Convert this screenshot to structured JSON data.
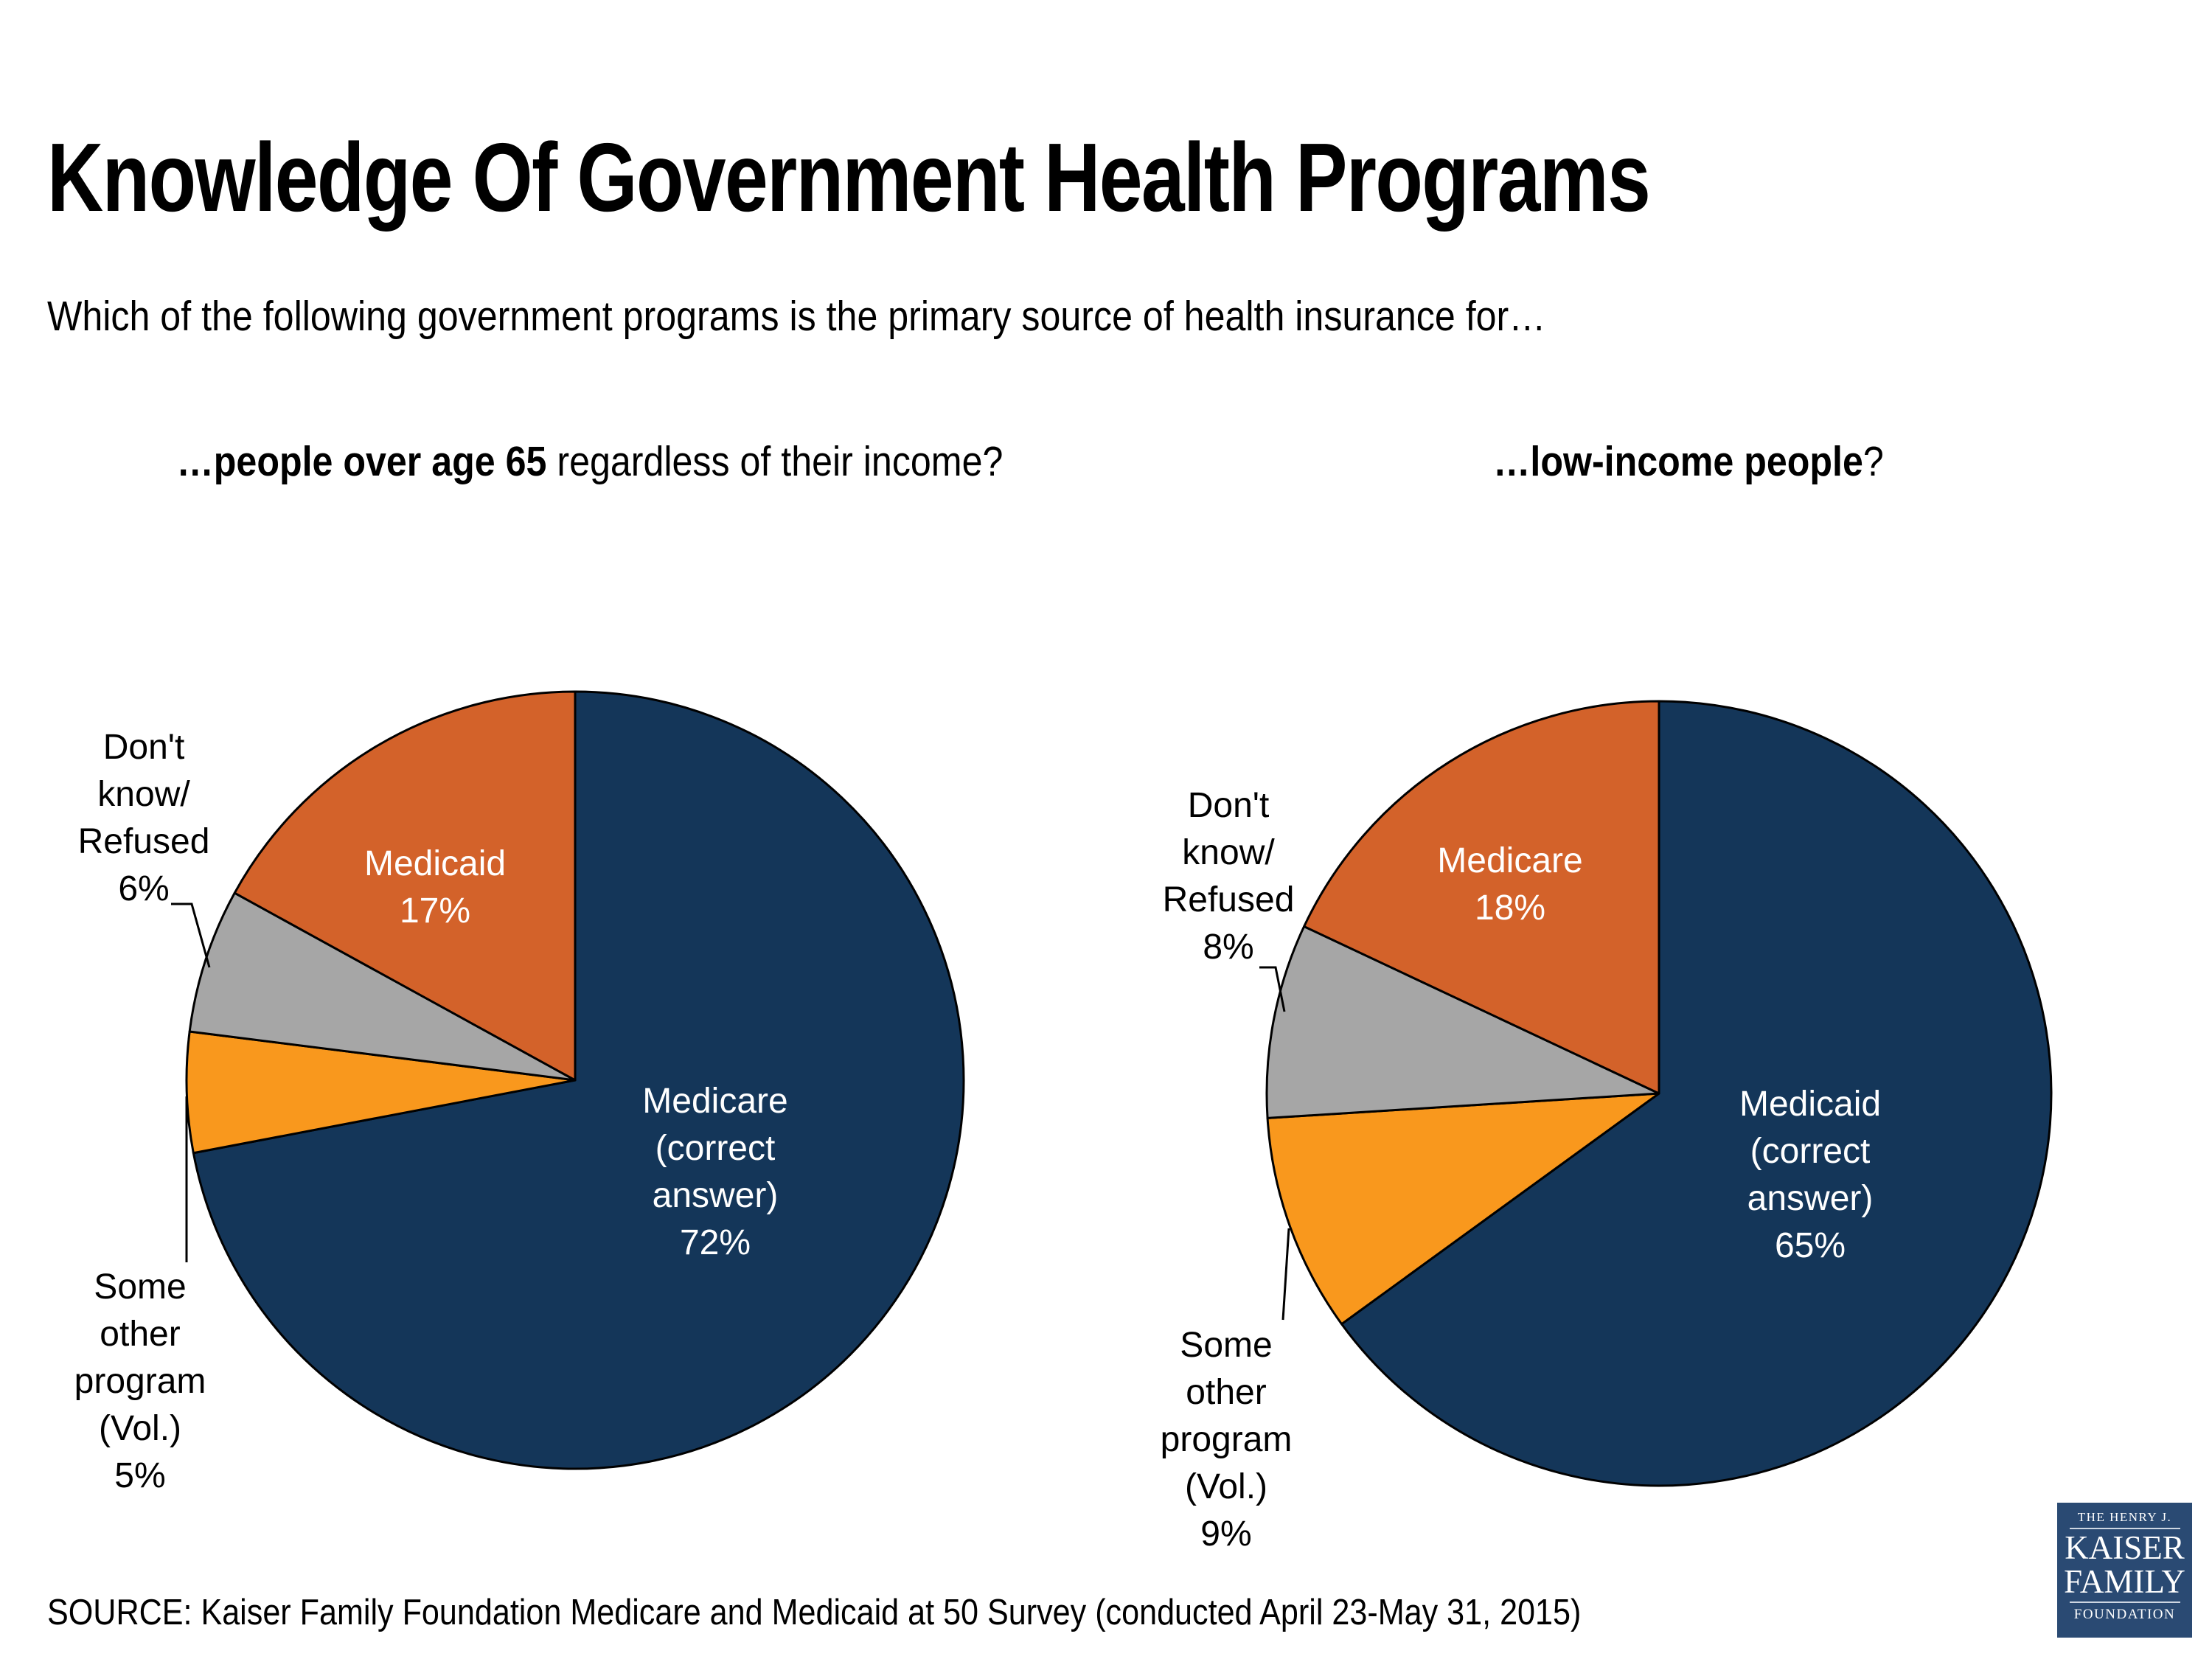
{
  "title": "Knowledge Of Government Health Programs",
  "question": "Which of the following government programs is the primary source of health insurance for…",
  "panels": [
    {
      "header_bold": "…people over age 65",
      "header_rest": " regardless of their income?"
    },
    {
      "header_bold": "…low-income people",
      "header_rest": "?"
    }
  ],
  "chart_data": [
    {
      "type": "pie",
      "title": "…people over age 65 regardless of their income?",
      "start_angle_deg": 0,
      "direction": "clockwise",
      "slices": [
        {
          "label": "Medicare (correct answer)",
          "value": 72,
          "color": "#143659",
          "label_lines": [
            "Medicare",
            "(correct",
            "answer)",
            "72%"
          ],
          "label_color": "#ffffff"
        },
        {
          "label": "Some other program (Vol.)",
          "value": 5,
          "color": "#F9981D",
          "label_lines": [
            "Some",
            "other",
            "program",
            "(Vol.)",
            "5%"
          ],
          "label_color": "#000000"
        },
        {
          "label": "Don't know/Refused",
          "value": 6,
          "color": "#A6A6A6",
          "label_lines": [
            "Don't",
            "know/",
            "Refused",
            "6%"
          ],
          "label_color": "#000000"
        },
        {
          "label": "Medicaid",
          "value": 17,
          "color": "#D3622A",
          "label_lines": [
            "Medicaid",
            "17%"
          ],
          "label_color": "#ffffff"
        }
      ]
    },
    {
      "type": "pie",
      "title": "…low-income people?",
      "start_angle_deg": 0,
      "direction": "clockwise",
      "slices": [
        {
          "label": "Medicaid (correct answer)",
          "value": 65,
          "color": "#143659",
          "label_lines": [
            "Medicaid",
            "(correct",
            "answer)",
            "65%"
          ],
          "label_color": "#ffffff"
        },
        {
          "label": "Some other program (Vol.)",
          "value": 9,
          "color": "#F9981D",
          "label_lines": [
            "Some",
            "other",
            "program",
            "(Vol.)",
            "9%"
          ],
          "label_color": "#000000"
        },
        {
          "label": "Don't know/Refused",
          "value": 8,
          "color": "#A6A6A6",
          "label_lines": [
            "Don't",
            "know/",
            "Refused",
            "8%"
          ],
          "label_color": "#000000"
        },
        {
          "label": "Medicare",
          "value": 18,
          "color": "#D3622A",
          "label_lines": [
            "Medicare",
            "18%"
          ],
          "label_color": "#ffffff"
        }
      ]
    }
  ],
  "colors": {
    "navy": "#143659",
    "rust": "#D3622A",
    "orange": "#F9981D",
    "gray": "#A6A6A6",
    "logo_navy": "#2A4A73"
  },
  "source": "SOURCE: Kaiser Family Foundation Medicare and Medicaid at 50 Survey (conducted April 23-May 31, 2015)",
  "logo": {
    "line1": "THE HENRY J.",
    "line2": "KAISER",
    "line3": "FAMILY",
    "line4": "FOUNDATION"
  }
}
